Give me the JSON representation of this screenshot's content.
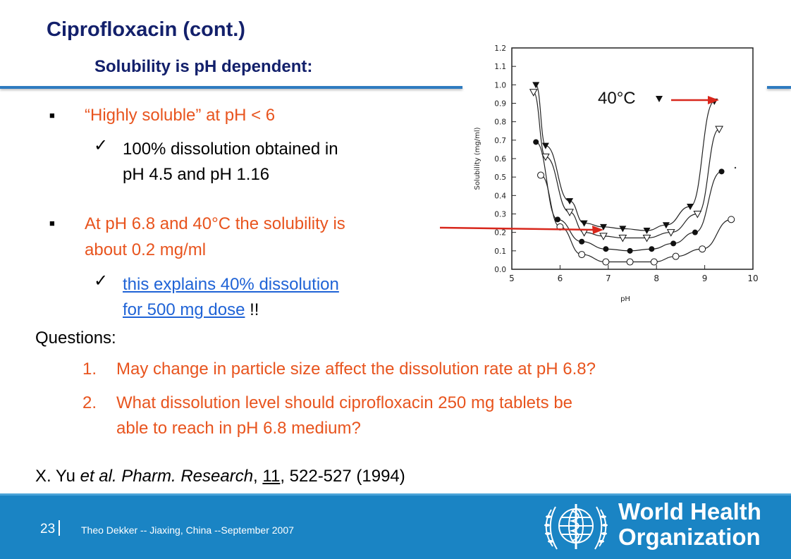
{
  "slide": {
    "title": "Ciprofloxacin (cont.)",
    "subtitle": "Solubility is pH dependent:"
  },
  "bullets": [
    {
      "text": "“Highly soluble” at pH < 6",
      "sub": [
        "100% dissolution obtained in",
        "pH 4.5 and pH 1.16"
      ]
    },
    {
      "text": [
        "At pH 6.8 and 40°C the solubility is",
        "about 0.2 mg/ml"
      ],
      "sub_link": [
        "this explains 40% dissolution",
        "for 500 mg dose"
      ],
      "sub_suffix": " !!"
    }
  ],
  "questions": {
    "heading": "Questions:",
    "items": [
      {
        "num": "1.",
        "lines": [
          "May change in particle size affect the dissolution rate at pH 6.8?"
        ]
      },
      {
        "num": "2.",
        "lines": [
          "What dissolution level should ciprofloxacin 250 mg tablets be",
          "able to reach in pH 6.8 medium?"
        ]
      }
    ]
  },
  "reference": {
    "author": "X. Yu ",
    "etal": "et al. Pharm. Research",
    "sep": ", ",
    "volume": "11",
    "pages": ", 522-527 (1994)"
  },
  "chart_data": {
    "type": "scatter",
    "xlabel": "pH",
    "ylabel": "Solubility (mg/ml)",
    "xlim": [
      5,
      10
    ],
    "ylim": [
      0,
      1.2
    ],
    "xticks": [
      "5",
      "6",
      "7",
      "8",
      "9",
      "10"
    ],
    "yticks": [
      "0.0",
      "0.1",
      "0.2",
      "0.3",
      "0.4",
      "0.5",
      "0.6",
      "0.7",
      "0.8",
      "0.9",
      "1.0",
      "1.1",
      "1.2"
    ],
    "annotation": "40°C",
    "series": [
      {
        "marker": "filled-triangle",
        "points": [
          [
            5.5,
            1.0
          ],
          [
            5.7,
            0.67
          ],
          [
            6.2,
            0.37
          ],
          [
            6.5,
            0.25
          ],
          [
            6.9,
            0.23
          ],
          [
            7.3,
            0.22
          ],
          [
            7.8,
            0.21
          ],
          [
            8.2,
            0.24
          ],
          [
            8.7,
            0.34
          ],
          [
            9.2,
            0.91
          ]
        ]
      },
      {
        "marker": "open-triangle",
        "points": [
          [
            5.45,
            0.96
          ],
          [
            5.7,
            0.61
          ],
          [
            6.2,
            0.31
          ],
          [
            6.5,
            0.2
          ],
          [
            6.9,
            0.18
          ],
          [
            7.3,
            0.17
          ],
          [
            7.8,
            0.17
          ],
          [
            8.3,
            0.2
          ],
          [
            8.85,
            0.3
          ],
          [
            9.3,
            0.76
          ]
        ]
      },
      {
        "marker": "filled-circle",
        "points": [
          [
            5.5,
            0.69
          ],
          [
            5.95,
            0.27
          ],
          [
            6.45,
            0.15
          ],
          [
            6.95,
            0.11
          ],
          [
            7.45,
            0.1
          ],
          [
            7.9,
            0.11
          ],
          [
            8.35,
            0.14
          ],
          [
            8.8,
            0.2
          ],
          [
            9.35,
            0.53
          ]
        ]
      },
      {
        "marker": "open-circle",
        "points": [
          [
            5.6,
            0.51
          ],
          [
            6.0,
            0.23
          ],
          [
            6.45,
            0.08
          ],
          [
            6.95,
            0.04
          ],
          [
            7.45,
            0.04
          ],
          [
            7.95,
            0.04
          ],
          [
            8.4,
            0.07
          ],
          [
            8.95,
            0.11
          ],
          [
            9.55,
            0.27
          ]
        ]
      }
    ]
  },
  "footer": {
    "page": "23",
    "author": "Theo Dekker  --  Jiaxing, China  --September 2007",
    "org_line1": "World Health",
    "org_line2": "Organization"
  },
  "colors": {
    "title": "#13206b",
    "accent": "#e8541e",
    "link": "#1f63d6",
    "footer": "#1a84c4"
  }
}
